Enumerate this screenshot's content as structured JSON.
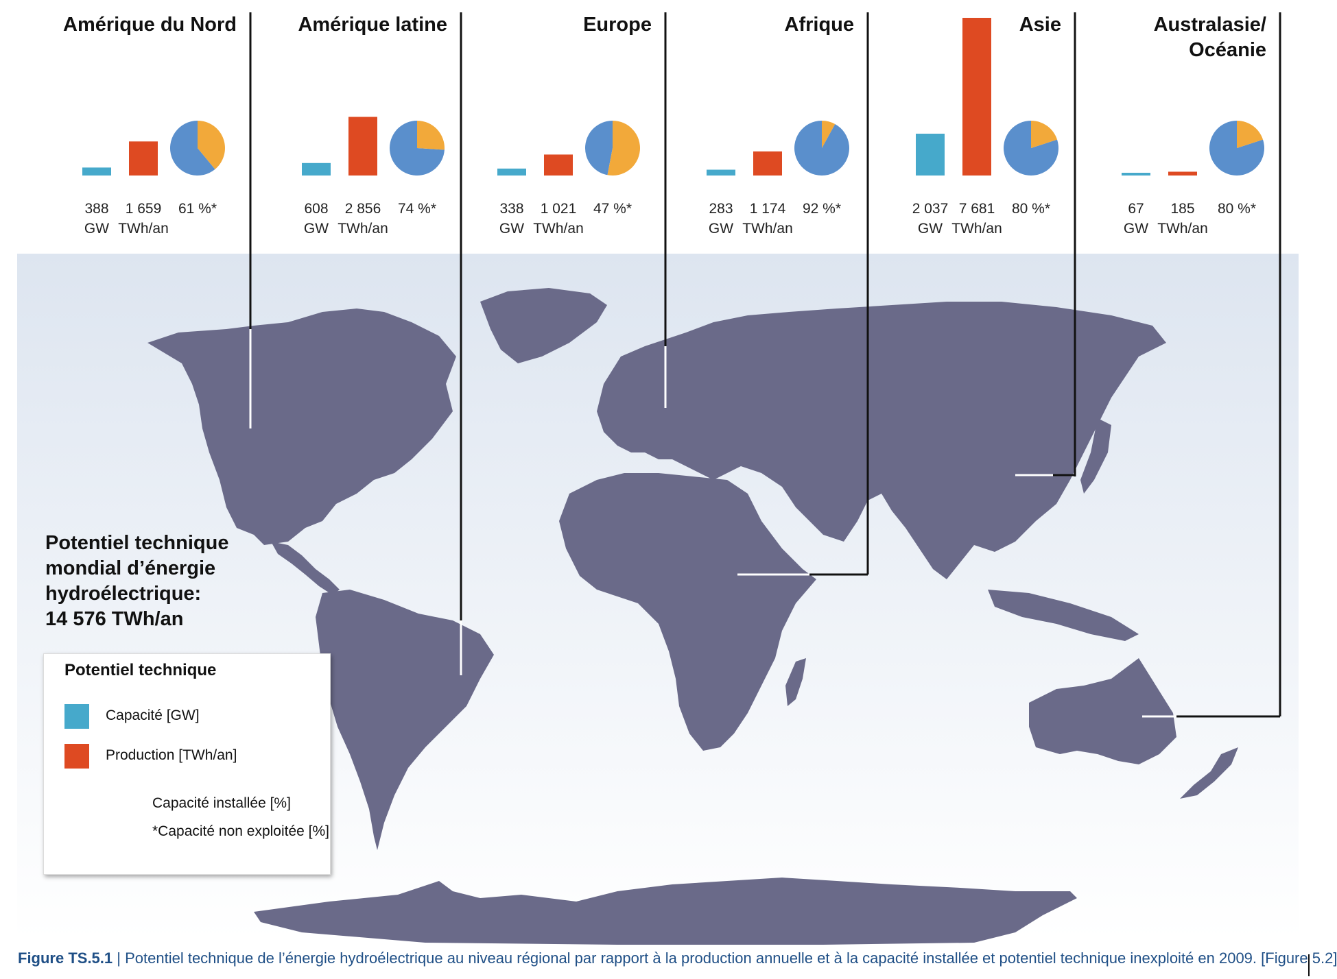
{
  "colors": {
    "capacity": "#46a9cb",
    "production": "#de4a22",
    "installed": "#f2a93a",
    "unexploited": "#5a8fcc",
    "land": "#6a6a89",
    "ocean_top": "#dde5f0",
    "ocean_bottom": "#ffffff"
  },
  "chart_data": {
    "type": "bar",
    "title": "Potentiel technique mondial d’énergie hydroélectrique: 14 576 TWh/an",
    "categories": [
      "Amérique du Nord",
      "Amérique latine",
      "Europe",
      "Afrique",
      "Asie",
      "Australasie/Océanie"
    ],
    "series": [
      {
        "name": "Capacité [GW]",
        "values": [
          388,
          608,
          338,
          283,
          2037,
          67
        ]
      },
      {
        "name": "Production [TWh/an]",
        "values": [
          1659,
          2856,
          1021,
          1174,
          7681,
          185
        ]
      },
      {
        "name": "*Capacité non exploitée [%]",
        "values": [
          61,
          74,
          47,
          92,
          80,
          80
        ]
      }
    ]
  },
  "regions": [
    {
      "name": "Amérique du Nord",
      "title_lines": [
        "Amérique du Nord"
      ],
      "capacity_label": "388",
      "production_label": "1 659",
      "unexploited_label": "61 %*"
    },
    {
      "name": "Amérique latine",
      "title_lines": [
        "Amérique latine"
      ],
      "capacity_label": "608",
      "production_label": "2 856",
      "unexploited_label": "74 %*"
    },
    {
      "name": "Europe",
      "title_lines": [
        "Europe"
      ],
      "capacity_label": "338",
      "production_label": "1 021",
      "unexploited_label": "47 %*"
    },
    {
      "name": "Afrique",
      "title_lines": [
        "Afrique"
      ],
      "capacity_label": "283",
      "production_label": "1 174",
      "unexploited_label": "92 %*"
    },
    {
      "name": "Asie",
      "title_lines": [
        "Asie"
      ],
      "capacity_label": "2 037",
      "production_label": "7 681",
      "unexploited_label": "80 %*"
    },
    {
      "name": "Australasie/Océanie",
      "title_lines": [
        "Australasie/",
        "Océanie"
      ],
      "capacity_label": "67",
      "production_label": "185",
      "unexploited_label": "80 %*"
    }
  ],
  "units": {
    "capacity": "GW",
    "production": "TWh/an"
  },
  "headline": {
    "line1": "Potentiel technique",
    "line2": "mondial d’énergie",
    "line3": "hydroélectrique:",
    "line4": "14 576 TWh/an"
  },
  "legend": {
    "title": "Potentiel technique",
    "capacity": "Capacité [GW]",
    "production": "Production [TWh/an]",
    "installed": "Capacité installée  [%]",
    "unexploited": "*Capacité non exploitée  [%]"
  },
  "caption": {
    "label": "Figure TS.5.1",
    "separator": " | ",
    "text": "Potentiel technique de l’énergie hydroélectrique au niveau régional par rapport à la production annuelle et à la capacité installée et potentiel technique inexploité en 2009. [Figure 5.2]"
  }
}
